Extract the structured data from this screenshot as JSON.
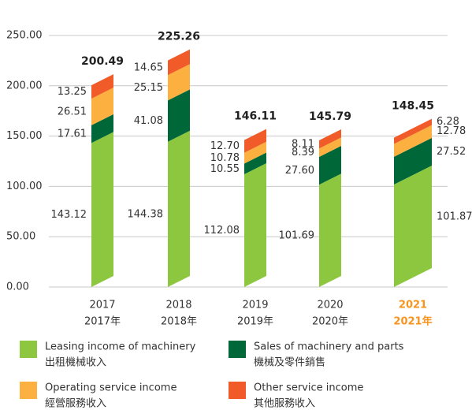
{
  "chart_data": {
    "type": "bar",
    "stacked": true,
    "categories": [
      "2017",
      "2018",
      "2019",
      "2020",
      "2021"
    ],
    "categories_sub": [
      "2017年",
      "2018年",
      "2019年",
      "2020年",
      "2021年"
    ],
    "highlight": 4,
    "highlight_color": "#f7941d",
    "totals": [
      200.49,
      225.26,
      146.11,
      145.79,
      148.45
    ],
    "series": [
      {
        "name": "Leasing income of machinery",
        "name_zh": "出租機械收入",
        "color": "#8dc63f",
        "values": [
          143.12,
          144.38,
          112.08,
          101.69,
          101.87
        ]
      },
      {
        "name": "Sales of machinery and parts",
        "name_zh": "機械及零件銷售",
        "color": "#006838",
        "values": [
          17.61,
          41.08,
          10.55,
          27.6,
          27.52
        ],
        "value_labels": [
          "17.61",
          "41.08",
          "10.55",
          "27.60",
          "27.52"
        ]
      },
      {
        "name": "Operating service income",
        "name_zh": "經營服務收入",
        "color": "#fbb040",
        "values": [
          26.51,
          25.15,
          10.78,
          8.39,
          12.78
        ]
      },
      {
        "name": "Other service income",
        "name_zh": "其他服務收入",
        "color": "#f15a29",
        "values": [
          13.25,
          14.65,
          12.7,
          8.11,
          6.28
        ],
        "value_labels": [
          "13.25",
          "14.65",
          "12.70",
          "8.11",
          "6.28"
        ]
      }
    ],
    "ylim": [
      0,
      250
    ],
    "yticks": [
      {
        "value": 0,
        "label": "0.00"
      },
      {
        "value": 50,
        "label": "50.00"
      },
      {
        "value": 100,
        "label": "100.00"
      },
      {
        "value": 150,
        "label": "150.00"
      },
      {
        "value": 200,
        "label": "200.00"
      },
      {
        "value": 250,
        "label": "250.00"
      }
    ],
    "grid": true
  }
}
